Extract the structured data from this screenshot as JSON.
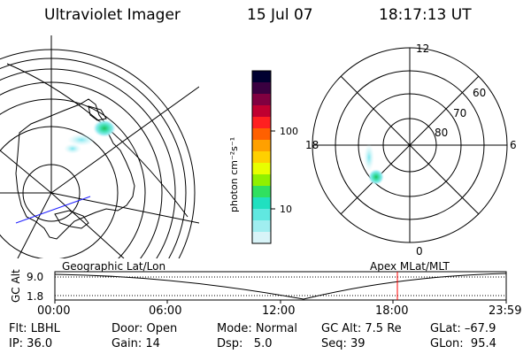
{
  "header": {
    "instrument": "Ultraviolet Imager",
    "date": "15 Jul 07",
    "time": "18:17:13 UT"
  },
  "colorbar": {
    "unit_label": "photon cm⁻²s⁻¹",
    "tick_100": "100",
    "tick_10": "10",
    "colors": [
      "#000030",
      "#3a0040",
      "#800040",
      "#c00030",
      "#ff2020",
      "#ff6000",
      "#ffa000",
      "#ffd000",
      "#e8ff00",
      "#90f000",
      "#30e060",
      "#20e0c0",
      "#60e8e0",
      "#a0eef0",
      "#d8f4f8"
    ]
  },
  "polar_labels": {
    "mlt_12": "12",
    "mlt_18": "18",
    "mlt_6": "6",
    "mlt_0": "0",
    "lat_60": "60",
    "lat_70": "70",
    "lat_80": "80"
  },
  "timeline": {
    "y_axis_label": "GC Alt",
    "y_max": "9.0",
    "y_min": "1.8",
    "left_panel_label": "Geographic Lat/Lon",
    "right_panel_label": "Apex MLat/MLT",
    "ticks": [
      "00:00",
      "06:00",
      "12:00",
      "18:00",
      "23:59"
    ],
    "marker_color": "#ff0000"
  },
  "status": {
    "filter": "Flt: LBHL",
    "ip": "IP: 36.0",
    "door": "Door: Open",
    "gain": "Gain: 14",
    "mode": "Mode: Normal",
    "dsp": "Dsp:   5.0",
    "gc_alt": "GC Alt: 7.5 Re",
    "seq": "Seq: 39",
    "glat": "GLat: –67.9",
    "glon": "GLon:  95.4"
  }
}
